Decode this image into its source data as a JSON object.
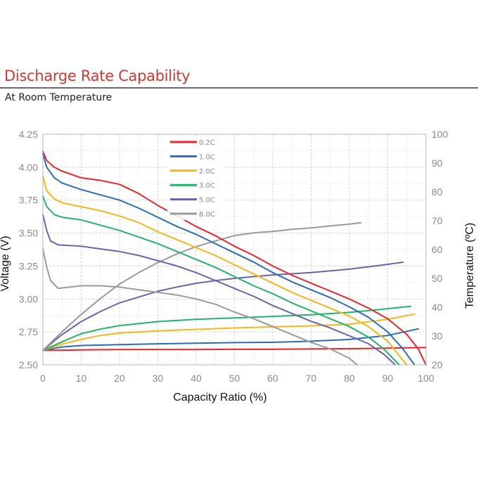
{
  "header": {
    "title": "Discharge Rate Capability",
    "subtitle": "At Room Temperature"
  },
  "chart_data": {
    "type": "line",
    "xlabel": "Capacity Ratio (%)",
    "ylabel": "Voltage (V)",
    "y2label": "Temperature (ºC)",
    "xlim": [
      0,
      100
    ],
    "ylim": [
      2.5,
      4.25
    ],
    "y2lim": [
      20,
      100
    ],
    "x_ticks": [
      "0",
      "10",
      "20",
      "30",
      "40",
      "50",
      "60",
      "70",
      "80",
      "90",
      "100"
    ],
    "y_ticks": [
      "2.50",
      "2.75",
      "3.00",
      "3.25",
      "3.50",
      "3.75",
      "4.00",
      "4.25"
    ],
    "y2_ticks": [
      "20",
      "30",
      "40",
      "50",
      "60",
      "70",
      "80",
      "90",
      "100"
    ],
    "grid": true,
    "legend_position": "top-center",
    "colors": {
      "0.2C": "#e8262b",
      "1.0C": "#2a6db5",
      "2.0C": "#f7b51b",
      "3.0C": "#22b36c",
      "5.0C": "#6b62b0",
      "8.0C": "#9a9a9a"
    },
    "voltage_series": [
      {
        "name": "0.2C",
        "points": [
          [
            0,
            4.12
          ],
          [
            1,
            4.05
          ],
          [
            3,
            4.0
          ],
          [
            5,
            3.97
          ],
          [
            10,
            3.92
          ],
          [
            15,
            3.9
          ],
          [
            20,
            3.87
          ],
          [
            25,
            3.8
          ],
          [
            30,
            3.71
          ],
          [
            35,
            3.63
          ],
          [
            40,
            3.55
          ],
          [
            45,
            3.48
          ],
          [
            50,
            3.4
          ],
          [
            55,
            3.33
          ],
          [
            60,
            3.25
          ],
          [
            65,
            3.18
          ],
          [
            70,
            3.12
          ],
          [
            75,
            3.06
          ],
          [
            80,
            3.0
          ],
          [
            85,
            2.93
          ],
          [
            90,
            2.85
          ],
          [
            95,
            2.73
          ],
          [
            98,
            2.62
          ],
          [
            100,
            2.5
          ]
        ]
      },
      {
        "name": "1.0C",
        "points": [
          [
            0,
            4.1
          ],
          [
            1,
            4.0
          ],
          [
            3,
            3.92
          ],
          [
            5,
            3.88
          ],
          [
            10,
            3.83
          ],
          [
            15,
            3.79
          ],
          [
            20,
            3.75
          ],
          [
            25,
            3.69
          ],
          [
            30,
            3.62
          ],
          [
            35,
            3.55
          ],
          [
            40,
            3.49
          ],
          [
            45,
            3.42
          ],
          [
            50,
            3.35
          ],
          [
            55,
            3.28
          ],
          [
            60,
            3.2
          ],
          [
            65,
            3.13
          ],
          [
            70,
            3.07
          ],
          [
            75,
            3.01
          ],
          [
            80,
            2.94
          ],
          [
            85,
            2.86
          ],
          [
            90,
            2.75
          ],
          [
            94,
            2.62
          ],
          [
            97,
            2.5
          ]
        ]
      },
      {
        "name": "2.0C",
        "points": [
          [
            0,
            3.93
          ],
          [
            1,
            3.82
          ],
          [
            3,
            3.76
          ],
          [
            5,
            3.73
          ],
          [
            10,
            3.7
          ],
          [
            15,
            3.67
          ],
          [
            20,
            3.63
          ],
          [
            25,
            3.58
          ],
          [
            30,
            3.51
          ],
          [
            35,
            3.45
          ],
          [
            40,
            3.39
          ],
          [
            45,
            3.33
          ],
          [
            50,
            3.26
          ],
          [
            55,
            3.19
          ],
          [
            60,
            3.12
          ],
          [
            65,
            3.05
          ],
          [
            70,
            2.99
          ],
          [
            75,
            2.93
          ],
          [
            80,
            2.87
          ],
          [
            85,
            2.79
          ],
          [
            90,
            2.68
          ],
          [
            93,
            2.57
          ],
          [
            95,
            2.5
          ]
        ]
      },
      {
        "name": "3.0C",
        "points": [
          [
            0,
            3.78
          ],
          [
            1,
            3.7
          ],
          [
            3,
            3.64
          ],
          [
            5,
            3.62
          ],
          [
            10,
            3.6
          ],
          [
            15,
            3.56
          ],
          [
            20,
            3.52
          ],
          [
            25,
            3.47
          ],
          [
            30,
            3.42
          ],
          [
            35,
            3.36
          ],
          [
            40,
            3.3
          ],
          [
            45,
            3.24
          ],
          [
            50,
            3.17
          ],
          [
            55,
            3.1
          ],
          [
            60,
            3.04
          ],
          [
            65,
            2.97
          ],
          [
            70,
            2.91
          ],
          [
            75,
            2.85
          ],
          [
            80,
            2.79
          ],
          [
            85,
            2.71
          ],
          [
            89,
            2.62
          ],
          [
            93,
            2.5
          ]
        ]
      },
      {
        "name": "5.0C",
        "points": [
          [
            0,
            3.64
          ],
          [
            1,
            3.52
          ],
          [
            2,
            3.44
          ],
          [
            4,
            3.41
          ],
          [
            10,
            3.4
          ],
          [
            15,
            3.38
          ],
          [
            20,
            3.36
          ],
          [
            25,
            3.33
          ],
          [
            30,
            3.29
          ],
          [
            35,
            3.25
          ],
          [
            40,
            3.2
          ],
          [
            45,
            3.14
          ],
          [
            50,
            3.08
          ],
          [
            55,
            3.02
          ],
          [
            60,
            2.95
          ],
          [
            65,
            2.89
          ],
          [
            70,
            2.83
          ],
          [
            75,
            2.78
          ],
          [
            80,
            2.72
          ],
          [
            85,
            2.66
          ],
          [
            89,
            2.58
          ],
          [
            92,
            2.5
          ]
        ]
      },
      {
        "name": "8.0C",
        "points": [
          [
            0,
            3.38
          ],
          [
            1,
            3.24
          ],
          [
            2,
            3.14
          ],
          [
            4,
            3.08
          ],
          [
            7,
            3.09
          ],
          [
            10,
            3.1
          ],
          [
            15,
            3.1
          ],
          [
            20,
            3.09
          ],
          [
            25,
            3.07
          ],
          [
            30,
            3.05
          ],
          [
            35,
            3.03
          ],
          [
            40,
            3.0
          ],
          [
            45,
            2.96
          ],
          [
            50,
            2.9
          ],
          [
            55,
            2.85
          ],
          [
            60,
            2.79
          ],
          [
            65,
            2.73
          ],
          [
            70,
            2.67
          ],
          [
            75,
            2.62
          ],
          [
            80,
            2.55
          ],
          [
            82,
            2.5
          ]
        ]
      }
    ],
    "temperature_series": [
      {
        "name": "0.2C",
        "points": [
          [
            0,
            25
          ],
          [
            10,
            25.2
          ],
          [
            20,
            25.3
          ],
          [
            30,
            25.3
          ],
          [
            40,
            25.3
          ],
          [
            50,
            25.4
          ],
          [
            60,
            25.4
          ],
          [
            70,
            25.5
          ],
          [
            80,
            25.6
          ],
          [
            90,
            25.8
          ],
          [
            100,
            26
          ]
        ]
      },
      {
        "name": "1.0C",
        "points": [
          [
            0,
            25
          ],
          [
            5,
            26.2
          ],
          [
            10,
            26.7
          ],
          [
            20,
            27
          ],
          [
            30,
            27.3
          ],
          [
            40,
            27.5
          ],
          [
            50,
            27.7
          ],
          [
            60,
            27.8
          ],
          [
            70,
            28.2
          ],
          [
            80,
            28.8
          ],
          [
            90,
            30.2
          ],
          [
            98,
            32.5
          ]
        ]
      },
      {
        "name": "2.0C",
        "points": [
          [
            0,
            25
          ],
          [
            5,
            27.2
          ],
          [
            10,
            28.8
          ],
          [
            15,
            30.2
          ],
          [
            20,
            31
          ],
          [
            30,
            31.8
          ],
          [
            40,
            32.3
          ],
          [
            50,
            32.8
          ],
          [
            60,
            33.2
          ],
          [
            70,
            33.5
          ],
          [
            80,
            34.1
          ],
          [
            90,
            35.8
          ],
          [
            97,
            37.6
          ]
        ]
      },
      {
        "name": "3.0C",
        "points": [
          [
            0,
            25
          ],
          [
            5,
            28
          ],
          [
            10,
            30.8
          ],
          [
            15,
            32.4
          ],
          [
            20,
            33.6
          ],
          [
            30,
            35
          ],
          [
            40,
            35.8
          ],
          [
            50,
            36.3
          ],
          [
            60,
            36.8
          ],
          [
            70,
            37.4
          ],
          [
            80,
            38.2
          ],
          [
            88,
            39.2
          ],
          [
            96,
            40.3
          ]
        ]
      },
      {
        "name": "5.0C",
        "points": [
          [
            0,
            25
          ],
          [
            5,
            30.5
          ],
          [
            10,
            35
          ],
          [
            15,
            38.5
          ],
          [
            20,
            41.5
          ],
          [
            25,
            43.5
          ],
          [
            30,
            45.5
          ],
          [
            35,
            47
          ],
          [
            40,
            48.3
          ],
          [
            45,
            49.2
          ],
          [
            50,
            50
          ],
          [
            60,
            51.2
          ],
          [
            70,
            52
          ],
          [
            80,
            53.2
          ],
          [
            88,
            54.5
          ],
          [
            94,
            55.6
          ]
        ]
      },
      {
        "name": "8.0C",
        "points": [
          [
            0,
            25
          ],
          [
            5,
            31.5
          ],
          [
            10,
            37.5
          ],
          [
            15,
            43
          ],
          [
            20,
            48
          ],
          [
            25,
            52
          ],
          [
            30,
            55.5
          ],
          [
            35,
            58.5
          ],
          [
            40,
            61
          ],
          [
            45,
            63
          ],
          [
            50,
            64.8
          ],
          [
            55,
            65.8
          ],
          [
            60,
            66.3
          ],
          [
            65,
            67
          ],
          [
            70,
            67.5
          ],
          [
            75,
            68.2
          ],
          [
            80,
            68.8
          ],
          [
            83,
            69.3
          ]
        ]
      }
    ]
  }
}
